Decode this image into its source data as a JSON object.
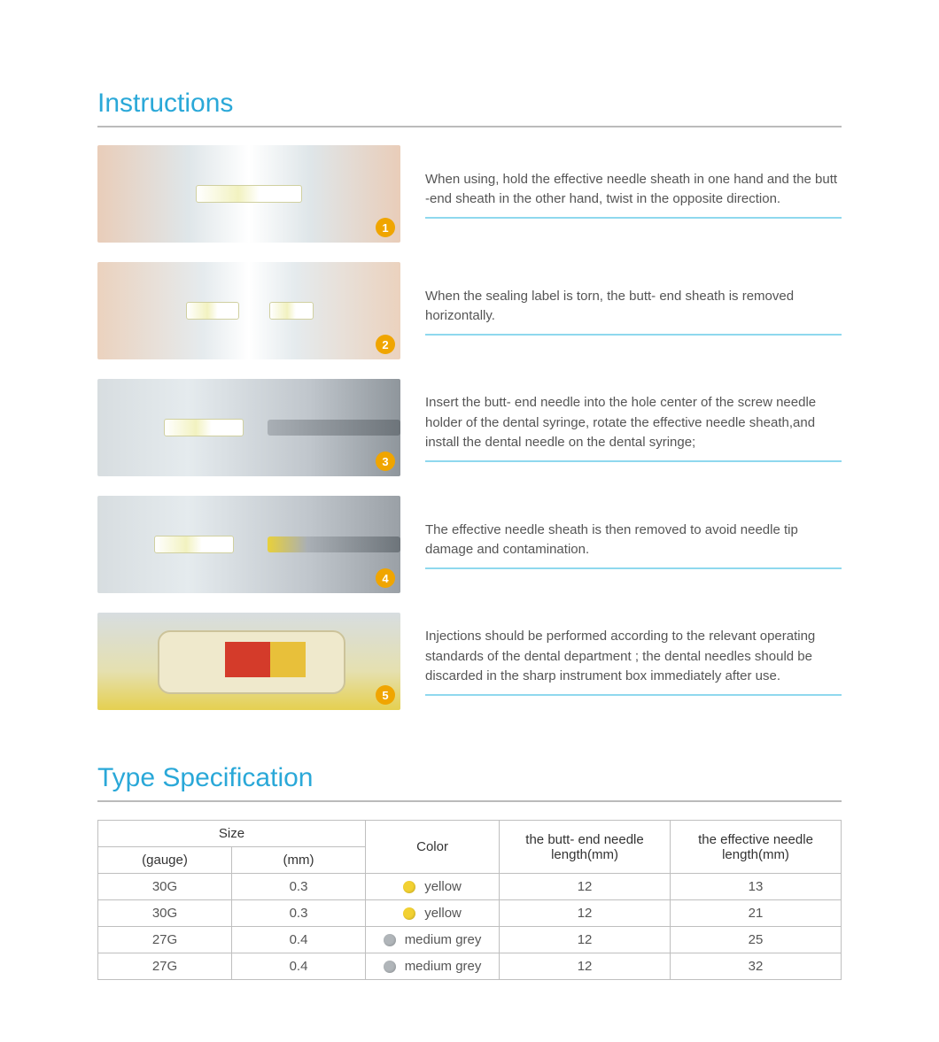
{
  "colors": {
    "heading": "#2aa8d8",
    "heading_underline": "#bbbbbb",
    "step_underline": "#8fd8ee",
    "body_text": "#555555",
    "badge_bg": "#f0a500",
    "badge_text": "#ffffff",
    "table_border": "#bfbfbf",
    "swatch_yellow": "#f2d132",
    "swatch_grey": "#b0b5b9"
  },
  "typography": {
    "heading_fontsize": 30,
    "body_fontsize": 15,
    "table_fontsize": 15
  },
  "instructions": {
    "title": "Instructions",
    "steps": [
      {
        "num": "1",
        "text": "When using, hold the effective needle sheath in one hand and the butt -end sheath in the other hand, twist in the opposite direction."
      },
      {
        "num": "2",
        "text": "When the sealing label is torn, the butt- end sheath is removed horizontally."
      },
      {
        "num": "3",
        "text": "Insert the butt- end needle into the hole center of the screw needle holder of the dental syringe, rotate the effective needle sheath,and install the dental needle on the dental syringe;"
      },
      {
        "num": "4",
        "text": "The effective needle sheath is then removed to avoid needle tip damage and contamination."
      },
      {
        "num": "5",
        "text": "Injections should be performed according to the relevant operating standards of the dental department ; the dental needles should be discarded in the sharp instrument box immediately after use."
      }
    ]
  },
  "spec": {
    "title": "Type Specification",
    "columns": {
      "size": "Size",
      "gauge": "(gauge)",
      "mm": "(mm)",
      "color": "Color",
      "butt": "the butt- end needle length(mm)",
      "eff": "the effective needle length(mm)"
    },
    "col_widths_pct": [
      18,
      18,
      18,
      23,
      23
    ],
    "rows": [
      {
        "gauge": "30G",
        "mm": "0.3",
        "color_name": "yellow",
        "swatch": "#f2d132",
        "butt": "12",
        "eff": "13"
      },
      {
        "gauge": "30G",
        "mm": "0.3",
        "color_name": "yellow",
        "swatch": "#f2d132",
        "butt": "12",
        "eff": "21"
      },
      {
        "gauge": "27G",
        "mm": "0.4",
        "color_name": "medium grey",
        "swatch": "#b0b5b9",
        "butt": "12",
        "eff": "25"
      },
      {
        "gauge": "27G",
        "mm": "0.4",
        "color_name": "medium grey",
        "swatch": "#b0b5b9",
        "butt": "12",
        "eff": "32"
      }
    ]
  }
}
